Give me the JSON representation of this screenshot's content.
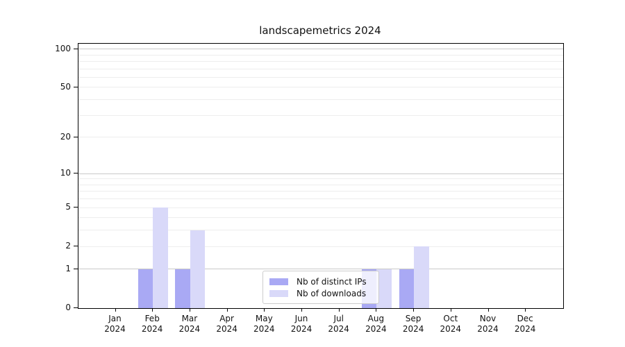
{
  "title": "landscapemetrics 2024",
  "chart_data": {
    "type": "bar",
    "title": "landscapemetrics 2024",
    "categories": [
      "Jan 2024",
      "Feb 2024",
      "Mar 2024",
      "Apr 2024",
      "May 2024",
      "Jun 2024",
      "Jul 2024",
      "Aug 2024",
      "Sep 2024",
      "Oct 2024",
      "Nov 2024",
      "Dec 2024"
    ],
    "series": [
      {
        "name": "Nb of distinct IPs",
        "color": "#a9a9f4",
        "values": [
          0,
          1,
          1,
          0,
          0,
          0,
          0,
          1,
          1,
          0,
          0,
          0
        ]
      },
      {
        "name": "Nb of downloads",
        "color": "#d9d9f9",
        "values": [
          0,
          5,
          3,
          0,
          0,
          0,
          0,
          1,
          2,
          0,
          0,
          0
        ]
      }
    ],
    "xlabel": "",
    "ylabel": "",
    "y_scale": "log1p",
    "ylim": [
      0,
      110
    ],
    "y_ticks": [
      0,
      1,
      2,
      5,
      10,
      20,
      50,
      100
    ],
    "major_gridlines": [
      1,
      10,
      100
    ],
    "minor_gridlines": [
      2,
      3,
      4,
      5,
      6,
      7,
      8,
      9,
      20,
      30,
      40,
      50,
      60,
      70,
      80,
      90
    ],
    "grid": true,
    "legend_position": "lower-center"
  },
  "colors": {
    "background": "#ffffff",
    "axis": "#000000",
    "major_grid": "#c9c9c9",
    "minor_grid": "#ededed",
    "series_dark": "#a9a9f4",
    "series_light": "#d9d9f9"
  }
}
